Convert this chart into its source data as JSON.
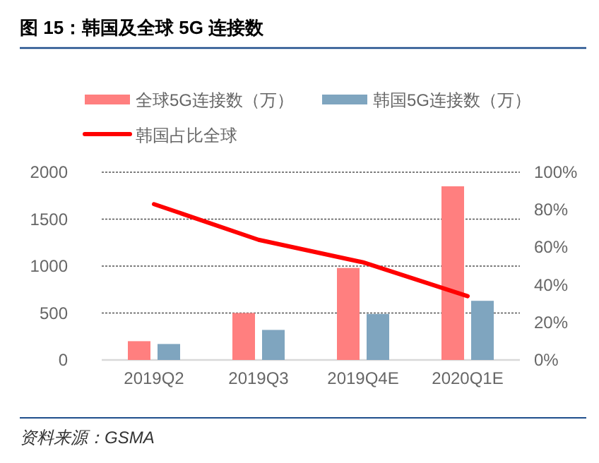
{
  "chart_data": {
    "type": "bar",
    "title": "图 15：韩国及全球 5G 连接数",
    "categories": [
      "2019Q2",
      "2019Q3",
      "2019Q4E",
      "2020Q1E"
    ],
    "series": [
      {
        "name": "全球5G连接数（万）",
        "color": "#ff7f7f",
        "values": [
          200,
          500,
          980,
          1850
        ]
      },
      {
        "name": "韩国5G连接数（万）",
        "color": "#7fa5bf",
        "values": [
          170,
          320,
          490,
          630
        ]
      },
      {
        "name": "韩国占比全球",
        "type": "line",
        "axis": "y2",
        "color": "#ff0000",
        "values": [
          83,
          64,
          52,
          34
        ]
      }
    ],
    "ylim": [
      0,
      2000
    ],
    "yticks": [
      0,
      500,
      1000,
      1500,
      2000
    ],
    "y2lim": [
      0,
      100
    ],
    "y2ticks": [
      {
        "value": 0,
        "label": "0%"
      },
      {
        "value": 20,
        "label": "20%"
      },
      {
        "value": 40,
        "label": "40%"
      },
      {
        "value": 60,
        "label": "60%"
      },
      {
        "value": 80,
        "label": "80%"
      },
      {
        "value": 100,
        "label": "100%"
      }
    ],
    "grid": "y",
    "legend": "top",
    "marker": "none",
    "line_style": "solid",
    "annotations": [
      "资料来源：GSMA"
    ]
  }
}
